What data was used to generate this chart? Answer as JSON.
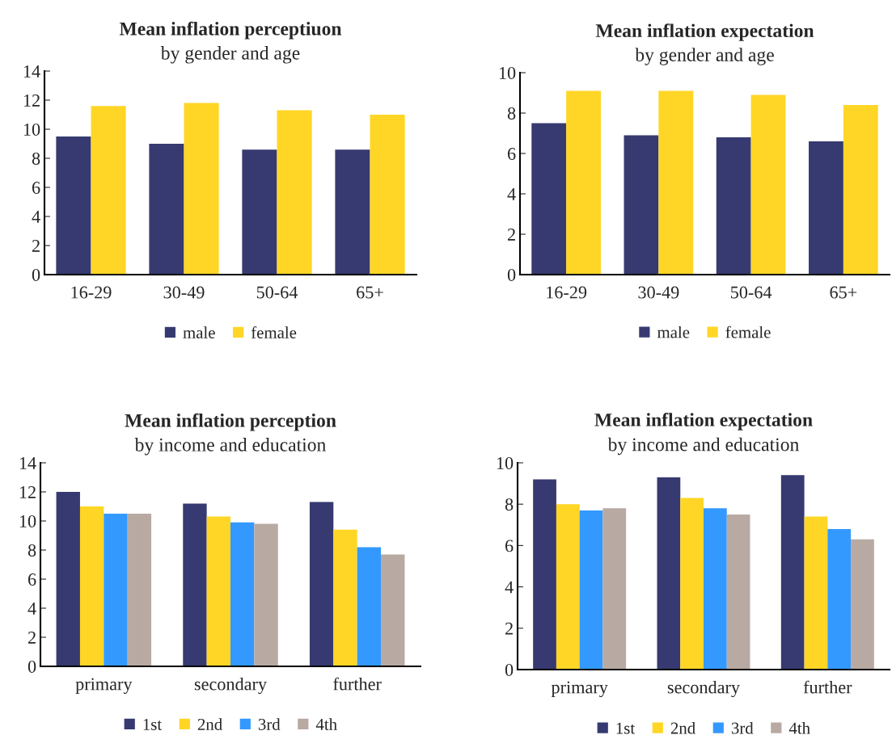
{
  "chart_data": [
    {
      "type": "bar",
      "title": "Mean inflation perceptiuon",
      "subtitle": "by gender and age",
      "categories": [
        "16-29",
        "30-49",
        "50-64",
        "65+"
      ],
      "series": [
        {
          "name": "male",
          "color": "#363a70",
          "values": [
            9.5,
            9.0,
            8.6,
            8.6
          ]
        },
        {
          "name": "female",
          "color": "#ffd625",
          "values": [
            11.6,
            11.8,
            11.3,
            11.0
          ]
        }
      ],
      "ylim": [
        0,
        14
      ],
      "yticks": [
        0,
        2,
        4,
        6,
        8,
        10,
        12,
        14
      ],
      "grid": false,
      "legend": "bottom"
    },
    {
      "type": "bar",
      "title": "Mean inflation expectation",
      "subtitle": "by gender and age",
      "categories": [
        "16-29",
        "30-49",
        "50-64",
        "65+"
      ],
      "series": [
        {
          "name": "male",
          "color": "#363a70",
          "values": [
            7.5,
            6.9,
            6.8,
            6.6
          ]
        },
        {
          "name": "female",
          "color": "#ffd625",
          "values": [
            9.1,
            9.1,
            8.9,
            8.4
          ]
        }
      ],
      "ylim": [
        0,
        10
      ],
      "yticks": [
        0,
        2,
        4,
        6,
        8,
        10
      ],
      "grid": false,
      "legend": "bottom"
    },
    {
      "type": "bar",
      "title": "Mean inflation perception",
      "subtitle": "by income and education",
      "categories": [
        "primary",
        "secondary",
        "further"
      ],
      "series": [
        {
          "name": "1st",
          "color": "#363a70",
          "values": [
            12.0,
            11.2,
            11.3
          ]
        },
        {
          "name": "2nd",
          "color": "#ffd625",
          "values": [
            11.0,
            10.3,
            9.4
          ]
        },
        {
          "name": "3rd",
          "color": "#3399ff",
          "values": [
            10.5,
            9.9,
            8.2
          ]
        },
        {
          "name": "4th",
          "color": "#b8aaa2",
          "values": [
            10.5,
            9.8,
            7.7
          ]
        }
      ],
      "ylim": [
        0,
        14
      ],
      "yticks": [
        0,
        2,
        4,
        6,
        8,
        10,
        12,
        14
      ],
      "grid": false,
      "legend": "bottom"
    },
    {
      "type": "bar",
      "title": "Mean inflation expectation",
      "subtitle": "by income and education",
      "categories": [
        "primary",
        "secondary",
        "further"
      ],
      "series": [
        {
          "name": "1st",
          "color": "#363a70",
          "values": [
            9.2,
            9.3,
            9.4
          ]
        },
        {
          "name": "2nd",
          "color": "#ffd625",
          "values": [
            8.0,
            8.3,
            7.4
          ]
        },
        {
          "name": "3rd",
          "color": "#3399ff",
          "values": [
            7.7,
            7.8,
            6.8
          ]
        },
        {
          "name": "4th",
          "color": "#b8aaa2",
          "values": [
            7.8,
            7.5,
            6.3
          ]
        }
      ],
      "ylim": [
        0,
        10
      ],
      "yticks": [
        0,
        2,
        4,
        6,
        8,
        10
      ],
      "grid": false,
      "legend": "bottom"
    }
  ]
}
